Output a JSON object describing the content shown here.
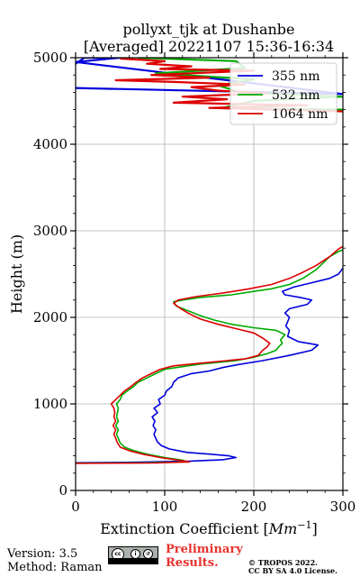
{
  "chart_data": {
    "type": "line",
    "title_line1": "pollyxt_tjk at Dushanbe",
    "title_line2": "[Averaged] 20221107 15:36-16:34",
    "xlabel": "Extinction Coefficient [",
    "xlabel_unit": "Mm",
    "xlabel_exp": "−1",
    "xlabel_end": "]",
    "ylabel": "Height (m)",
    "xlim": [
      0,
      300
    ],
    "ylim": [
      0,
      5000
    ],
    "xticks": [
      "0",
      "100",
      "200",
      "300"
    ],
    "yticks": [
      "0",
      "1000",
      "2000",
      "3000",
      "4000",
      "5000"
    ],
    "grid": true,
    "legend_position": "top-right",
    "series": [
      {
        "name": "355 nm",
        "color": "#0000dd",
        "points": [
          [
            0,
            320
          ],
          [
            60,
            325
          ],
          [
            130,
            340
          ],
          [
            165,
            355
          ],
          [
            180,
            380
          ],
          [
            172,
            400
          ],
          [
            150,
            420
          ],
          [
            125,
            440
          ],
          [
            105,
            480
          ],
          [
            96,
            520
          ],
          [
            92,
            560
          ],
          [
            90,
            600
          ],
          [
            88,
            650
          ],
          [
            90,
            700
          ],
          [
            87,
            750
          ],
          [
            89,
            800
          ],
          [
            86,
            850
          ],
          [
            92,
            900
          ],
          [
            88,
            950
          ],
          [
            95,
            1000
          ],
          [
            93,
            1050
          ],
          [
            100,
            1100
          ],
          [
            102,
            1150
          ],
          [
            108,
            1200
          ],
          [
            110,
            1250
          ],
          [
            115,
            1300
          ],
          [
            130,
            1350
          ],
          [
            150,
            1380
          ],
          [
            165,
            1420
          ],
          [
            180,
            1450
          ],
          [
            210,
            1500
          ],
          [
            240,
            1560
          ],
          [
            265,
            1620
          ],
          [
            272,
            1680
          ],
          [
            250,
            1720
          ],
          [
            238,
            1780
          ],
          [
            240,
            1850
          ],
          [
            236,
            1900
          ],
          [
            238,
            1950
          ],
          [
            240,
            2000
          ],
          [
            235,
            2050
          ],
          [
            240,
            2100
          ],
          [
            260,
            2150
          ],
          [
            265,
            2200
          ],
          [
            252,
            2230
          ],
          [
            235,
            2260
          ],
          [
            232,
            2300
          ],
          [
            245,
            2350
          ],
          [
            265,
            2400
          ],
          [
            285,
            2450
          ],
          [
            295,
            2500
          ],
          [
            298,
            2540
          ],
          [
            300,
            2570
          ]
        ],
        "upper": [
          [
            0,
            4650
          ],
          [
            300,
            4580
          ],
          [
            0,
            4950
          ],
          [
            50,
            5000
          ],
          [
            10,
            5000
          ],
          [
            0,
            4930
          ]
        ]
      },
      {
        "name": "532 nm",
        "color": "#00aa00",
        "points": [
          [
            0,
            315
          ],
          [
            80,
            320
          ],
          [
            125,
            330
          ],
          [
            120,
            350
          ],
          [
            100,
            380
          ],
          [
            80,
            420
          ],
          [
            65,
            460
          ],
          [
            55,
            500
          ],
          [
            50,
            550
          ],
          [
            48,
            600
          ],
          [
            46,
            650
          ],
          [
            48,
            700
          ],
          [
            45,
            750
          ],
          [
            48,
            800
          ],
          [
            46,
            850
          ],
          [
            47,
            900
          ],
          [
            48,
            950
          ],
          [
            46,
            1000
          ],
          [
            50,
            1050
          ],
          [
            52,
            1100
          ],
          [
            58,
            1150
          ],
          [
            65,
            1200
          ],
          [
            70,
            1250
          ],
          [
            80,
            1300
          ],
          [
            90,
            1350
          ],
          [
            100,
            1400
          ],
          [
            120,
            1430
          ],
          [
            140,
            1460
          ],
          [
            160,
            1480
          ],
          [
            180,
            1500
          ],
          [
            200,
            1540
          ],
          [
            215,
            1580
          ],
          [
            225,
            1620
          ],
          [
            228,
            1660
          ],
          [
            232,
            1700
          ],
          [
            230,
            1740
          ],
          [
            235,
            1800
          ],
          [
            225,
            1850
          ],
          [
            200,
            1880
          ],
          [
            175,
            1920
          ],
          [
            155,
            1970
          ],
          [
            140,
            2020
          ],
          [
            125,
            2080
          ],
          [
            113,
            2130
          ],
          [
            110,
            2180
          ],
          [
            120,
            2200
          ],
          [
            140,
            2230
          ],
          [
            175,
            2260
          ],
          [
            200,
            2300
          ],
          [
            220,
            2330
          ],
          [
            240,
            2380
          ],
          [
            255,
            2450
          ],
          [
            270,
            2550
          ],
          [
            285,
            2700
          ],
          [
            295,
            2760
          ],
          [
            300,
            2780
          ]
        ],
        "upper": [
          [
            70,
            5000
          ],
          [
            180,
            4960
          ],
          [
            190,
            4880
          ],
          [
            90,
            4820
          ],
          [
            200,
            4750
          ],
          [
            160,
            4680
          ],
          [
            185,
            4600
          ],
          [
            300,
            4550
          ],
          [
            200,
            4500
          ],
          [
            165,
            4420
          ],
          [
            300,
            4400
          ]
        ]
      },
      {
        "name": "1064 nm",
        "color": "#dd0000",
        "points": [
          [
            0,
            312
          ],
          [
            90,
            318
          ],
          [
            128,
            330
          ],
          [
            115,
            350
          ],
          [
            95,
            380
          ],
          [
            75,
            420
          ],
          [
            60,
            460
          ],
          [
            50,
            500
          ],
          [
            47,
            550
          ],
          [
            45,
            600
          ],
          [
            43,
            650
          ],
          [
            45,
            700
          ],
          [
            42,
            750
          ],
          [
            45,
            800
          ],
          [
            43,
            850
          ],
          [
            44,
            900
          ],
          [
            43,
            950
          ],
          [
            40,
            1000
          ],
          [
            45,
            1050
          ],
          [
            50,
            1100
          ],
          [
            55,
            1150
          ],
          [
            62,
            1200
          ],
          [
            68,
            1250
          ],
          [
            75,
            1300
          ],
          [
            85,
            1350
          ],
          [
            95,
            1400
          ],
          [
            110,
            1440
          ],
          [
            130,
            1460
          ],
          [
            150,
            1480
          ],
          [
            170,
            1500
          ],
          [
            190,
            1520
          ],
          [
            205,
            1560
          ],
          [
            210,
            1620
          ],
          [
            215,
            1660
          ],
          [
            218,
            1700
          ],
          [
            210,
            1760
          ],
          [
            200,
            1820
          ],
          [
            180,
            1870
          ],
          [
            160,
            1920
          ],
          [
            140,
            1980
          ],
          [
            128,
            2040
          ],
          [
            118,
            2100
          ],
          [
            110,
            2160
          ],
          [
            115,
            2200
          ],
          [
            135,
            2240
          ],
          [
            165,
            2280
          ],
          [
            195,
            2330
          ],
          [
            220,
            2380
          ],
          [
            240,
            2450
          ],
          [
            255,
            2520
          ],
          [
            270,
            2600
          ],
          [
            285,
            2700
          ],
          [
            295,
            2790
          ],
          [
            300,
            2820
          ]
        ],
        "upper": [
          [
            50,
            4990
          ],
          [
            100,
            4960
          ],
          [
            80,
            4930
          ],
          [
            130,
            4900
          ],
          [
            95,
            4870
          ],
          [
            200,
            4850
          ],
          [
            85,
            4800
          ],
          [
            150,
            4770
          ],
          [
            45,
            4740
          ],
          [
            110,
            4720
          ],
          [
            190,
            4690
          ],
          [
            130,
            4660
          ],
          [
            160,
            4620
          ],
          [
            215,
            4590
          ],
          [
            120,
            4550
          ],
          [
            170,
            4520
          ],
          [
            110,
            4480
          ],
          [
            260,
            4450
          ],
          [
            150,
            4420
          ],
          [
            300,
            4380
          ]
        ]
      }
    ]
  },
  "footer": {
    "version": "Version: 3.5",
    "method": "Method: Raman",
    "prelim_line1": "Preliminary",
    "prelim_line2": "Results.",
    "copyright_line1": "© TROPOS 2022.",
    "copyright_line2": "CC BY SA 4.0 License."
  }
}
